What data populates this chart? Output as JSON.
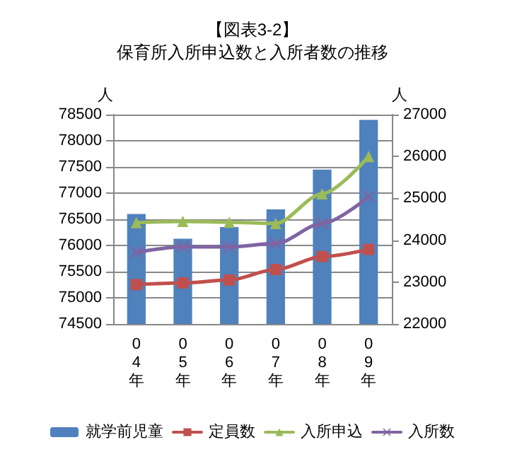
{
  "chart_data": {
    "type": "bar",
    "title": "【図表3-2】",
    "subtitle": "保育所入所申込数と入所者数の推移",
    "ylabel": "人",
    "y2label": "人",
    "categories": [
      "0\n4\n年",
      "0\n5\n年",
      "0\n6\n年",
      "0\n7\n年",
      "0\n8\n年",
      "0\n9\n年"
    ],
    "series": [
      {
        "name": "就学前児童",
        "color": "#4f81bd",
        "values": [
          76600,
          76130,
          76350,
          76690,
          77450,
          78400
        ]
      },
      {
        "name": "定員数",
        "type": "line",
        "axis": "y2",
        "marker": "square",
        "color": "#c0504d",
        "values": [
          22940,
          22980,
          23050,
          23300,
          23610,
          23780
        ]
      },
      {
        "name": "入所申込",
        "type": "line",
        "axis": "y2",
        "marker": "triangle",
        "color": "#9bbb59",
        "values": [
          24420,
          24450,
          24430,
          24400,
          25110,
          26000
        ]
      },
      {
        "name": "入所数",
        "type": "line",
        "axis": "y2",
        "marker": "cross",
        "color": "#8064a2",
        "values": [
          23710,
          23840,
          23840,
          23920,
          24400,
          25040
        ]
      }
    ],
    "ylim": [
      74500,
      78500
    ],
    "yticks": [
      74500,
      75000,
      75500,
      76000,
      76500,
      77000,
      77500,
      78000,
      78500
    ],
    "y2lim": [
      22000,
      27000
    ],
    "y2ticks": [
      22000,
      23000,
      24000,
      25000,
      26000,
      27000
    ],
    "grid": "y",
    "legend": "bottom",
    "line_style": "solid"
  }
}
